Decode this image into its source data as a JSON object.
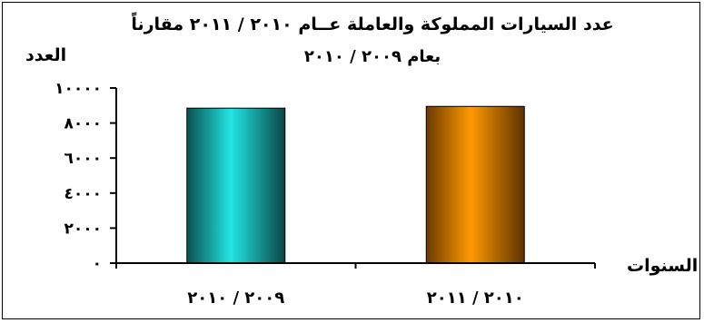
{
  "chart_data": {
    "type": "bar",
    "title_line1": "عدد السيارات المملوكة والعاملة عــام ٢٠١٠ / ٢٠١١ مقارناً",
    "title_line2": "بعام ٢٠٠٩ / ٢٠١٠",
    "ylabel": "العدد",
    "xlabel": "السنوات",
    "ylim": [
      0,
      10000
    ],
    "yticks": [
      0,
      2000,
      4000,
      6000,
      8000,
      10000
    ],
    "ytick_labels": [
      "٠",
      "٢٠٠٠",
      "٤٠٠٠",
      "٦٠٠٠",
      "٨٠٠٠",
      "١٠٠٠٠"
    ],
    "categories": [
      "٢٠٠٩ / ٢٠١٠",
      "٢٠١٠ / ٢٠١١"
    ],
    "values": [
      8850,
      8950
    ],
    "colors": [
      "#22e5e5",
      "#ff9900"
    ],
    "grid": false,
    "legend": "none"
  }
}
